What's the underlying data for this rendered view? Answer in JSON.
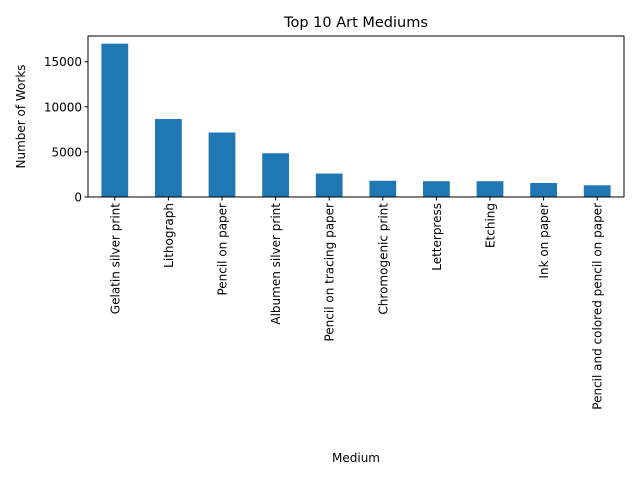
{
  "chart_data": {
    "type": "bar",
    "title": "Top 10 Art Mediums",
    "xlabel": "Medium",
    "ylabel": "Number of Works",
    "categories": [
      "Gelatin silver print",
      "Lithograph",
      "Pencil on paper",
      "Albumen silver print",
      "Pencil on tracing paper",
      "Chromogenic print",
      "Letterpress",
      "Etching",
      "Ink on paper",
      "Pencil and colored pencil on paper"
    ],
    "values": [
      17000,
      8650,
      7150,
      4850,
      2600,
      1800,
      1750,
      1750,
      1550,
      1300
    ],
    "ylim": [
      0,
      17850
    ],
    "yticks": [
      0,
      5000,
      10000,
      15000
    ],
    "ytick_labels": [
      "0",
      "5000",
      "10000",
      "15000"
    ],
    "grid": false,
    "bar_color": "#1f77b4"
  }
}
